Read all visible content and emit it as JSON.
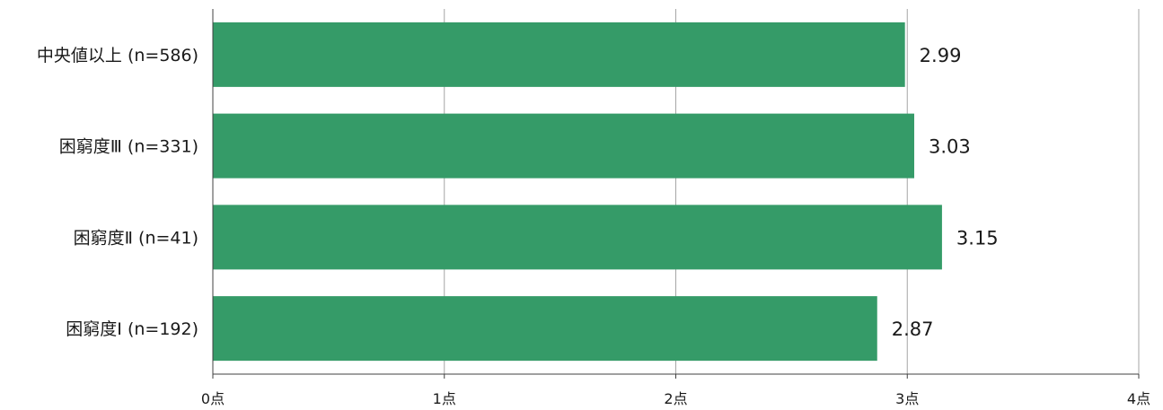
{
  "chart_data": {
    "type": "bar",
    "orientation": "horizontal",
    "categories": [
      "中央値以上 (n=586)",
      "困窮度Ⅲ (n=331)",
      "困窮度Ⅱ (n=41)",
      "困窮度Ⅰ (n=192)"
    ],
    "values": [
      2.99,
      3.03,
      3.15,
      2.87
    ],
    "value_labels": [
      "2.99",
      "3.03",
      "3.15",
      "2.87"
    ],
    "xlim": [
      0,
      4
    ],
    "x_ticks": [
      "0点",
      "1点",
      "2点",
      "3点",
      "4点"
    ],
    "grid": true,
    "colors": {
      "bar": "#359b68",
      "grid": "#a6a6a6",
      "axis": "#404040"
    }
  }
}
